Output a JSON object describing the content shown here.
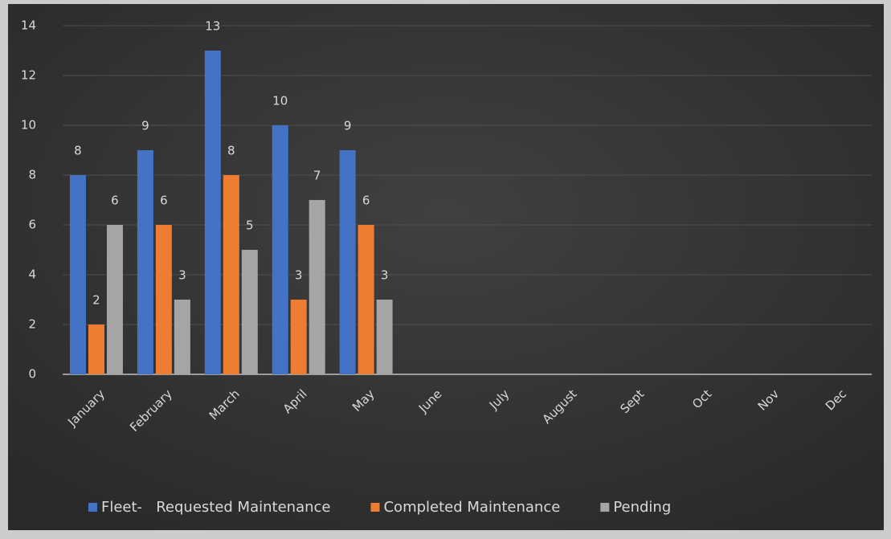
{
  "chart_data": {
    "type": "bar",
    "categories": [
      "January",
      "February",
      "March",
      "April",
      "May",
      "June",
      "July",
      "August",
      "Sept",
      "Oct",
      "Nov",
      "Dec"
    ],
    "series": [
      {
        "name": "Fleet-   Requested Maintenance",
        "color": "#4472c4",
        "values": [
          8,
          9,
          13,
          10,
          9,
          null,
          null,
          null,
          null,
          null,
          null,
          null
        ]
      },
      {
        "name": "Completed Maintenance",
        "color": "#ed7d31",
        "values": [
          2,
          6,
          8,
          3,
          6,
          null,
          null,
          null,
          null,
          null,
          null,
          null
        ]
      },
      {
        "name": "Pending",
        "color": "#a5a5a5",
        "values": [
          6,
          3,
          5,
          7,
          3,
          null,
          null,
          null,
          null,
          null,
          null,
          null
        ]
      }
    ],
    "ylim": [
      0,
      14
    ],
    "yticks": [
      0,
      2,
      4,
      6,
      8,
      10,
      12,
      14
    ],
    "grid": true,
    "legend": "bottom"
  }
}
